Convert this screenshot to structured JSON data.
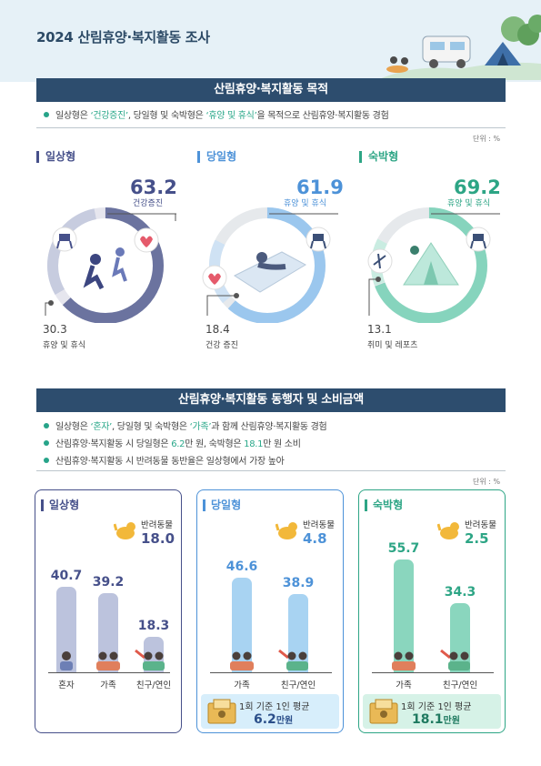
{
  "page": {
    "title": "2024 산림휴양·복지활동 조사"
  },
  "colors": {
    "daily": "#46508a",
    "day_trip": "#4d92d8",
    "overnight": "#2da585",
    "navy": "#2d4d6e"
  },
  "section1": {
    "title": "산림휴양·복지활동 목적",
    "bullet": {
      "p1": "일상형은 ",
      "h1": "‘건강증진’",
      "p2": ", 당일형 및 숙박형은 ",
      "h2": "‘휴양 및 휴식’",
      "p3": "을 목적으로 산림휴양·복지활동 경험"
    },
    "unit": "단위 : %",
    "types": [
      {
        "label": "일상형",
        "main_value": "63.2",
        "main_label": "건강증진",
        "minor_value": "30.3",
        "minor_label": "휴양 및 휴식"
      },
      {
        "label": "당일형",
        "main_value": "61.9",
        "main_label": "휴양 및 휴식",
        "minor_value": "18.4",
        "minor_label": "건강 증진"
      },
      {
        "label": "숙박형",
        "main_value": "69.2",
        "main_label": "휴양 및 휴식",
        "minor_value": "13.1",
        "minor_label": "취미 및 레포츠"
      }
    ]
  },
  "section2": {
    "title": "산림휴양·복지활동 동행자 및 소비금액",
    "bullets": [
      {
        "p1": "일상형은 ",
        "h1": "‘혼자’",
        "p2": ", 당일형 및 숙박형은 ",
        "h2": "‘가족’",
        "p3": "과 함께 산림휴양·복지활동 경험"
      },
      {
        "p1": "산림휴양·복지활동 시 당일형은 ",
        "h1": "6.2",
        "p2": "만 원, 숙박형은 ",
        "h2": "18.1",
        "p3": "만 원 소비"
      },
      {
        "p1": "산림휴양·복지활동 시 반려동물 동반율은 일상형에서 가장 높아",
        "h1": "",
        "p2": "",
        "h2": "",
        "p3": ""
      }
    ],
    "unit": "단위 : %",
    "cards": [
      {
        "label": "일상형",
        "pet_label": "반려동물",
        "pet_value": "18.0",
        "bars": [
          {
            "label": "혼자",
            "value": "40.7"
          },
          {
            "label": "가족",
            "value": "39.2"
          },
          {
            "label": "친구/연인",
            "value": "18.3"
          }
        ]
      },
      {
        "label": "당일형",
        "pet_label": "반려동물",
        "pet_value": "4.8",
        "bars": [
          {
            "label": "가족",
            "value": "46.6"
          },
          {
            "label": "친구/연인",
            "value": "38.9"
          }
        ],
        "spend_label": "1회 기준 1인 평균",
        "spend_value": "6.2",
        "spend_unit": "만원"
      },
      {
        "label": "숙박형",
        "pet_label": "반려동물",
        "pet_value": "2.5",
        "bars": [
          {
            "label": "가족",
            "value": "55.7"
          },
          {
            "label": "친구/연인",
            "value": "34.3"
          }
        ],
        "spend_label": "1회 기준 1인 평균",
        "spend_value": "18.1",
        "spend_unit": "만원"
      }
    ]
  }
}
